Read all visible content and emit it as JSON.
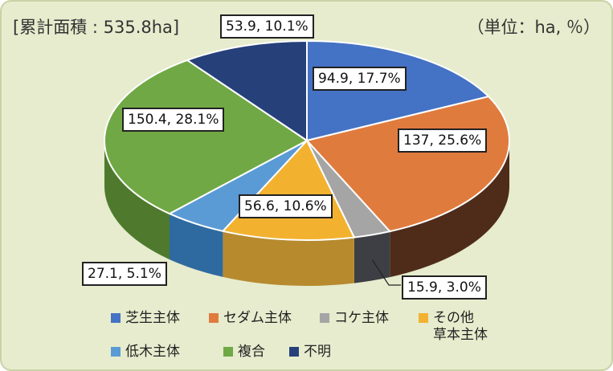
{
  "header": {
    "total": "[累計面積 : 535.8ha]",
    "unit": "（単位：ha, ％）"
  },
  "chart_data": {
    "type": "pie",
    "title": "",
    "slices": [
      {
        "name": "芝生主体",
        "value": 94.9,
        "percent": 17.7,
        "label": "94.9, 17.7%",
        "color": "#4472c4",
        "side": "#2f5597"
      },
      {
        "name": "セダム主体",
        "value": 137,
        "percent": 25.6,
        "label": "137, 25.6%",
        "color": "#e07b3e",
        "side": "#4f2c1a"
      },
      {
        "name": "コケ主体",
        "value": 15.9,
        "percent": 3.0,
        "label": "15.9, 3.0%",
        "color": "#a5a5a5",
        "side": "#3d3f44"
      },
      {
        "name": "その他\n草本主体",
        "value": 56.6,
        "percent": 10.6,
        "label": "56.6, 10.6%",
        "color": "#f2b230",
        "side": "#b78a2e"
      },
      {
        "name": "低木主体",
        "value": 27.1,
        "percent": 5.1,
        "label": "27.1, 5.1%",
        "color": "#5b9bd5",
        "side": "#2e6aa0"
      },
      {
        "name": "複合",
        "value": 150.4,
        "percent": 28.1,
        "label": "150.4, 28.1%",
        "color": "#70a845",
        "side": "#4f7a2e"
      },
      {
        "name": "不明",
        "value": 53.9,
        "percent": 10.1,
        "label": "53.9, 10.1%",
        "color": "#26417a",
        "side": "#1b2d55"
      }
    ],
    "legend_position": "bottom"
  }
}
